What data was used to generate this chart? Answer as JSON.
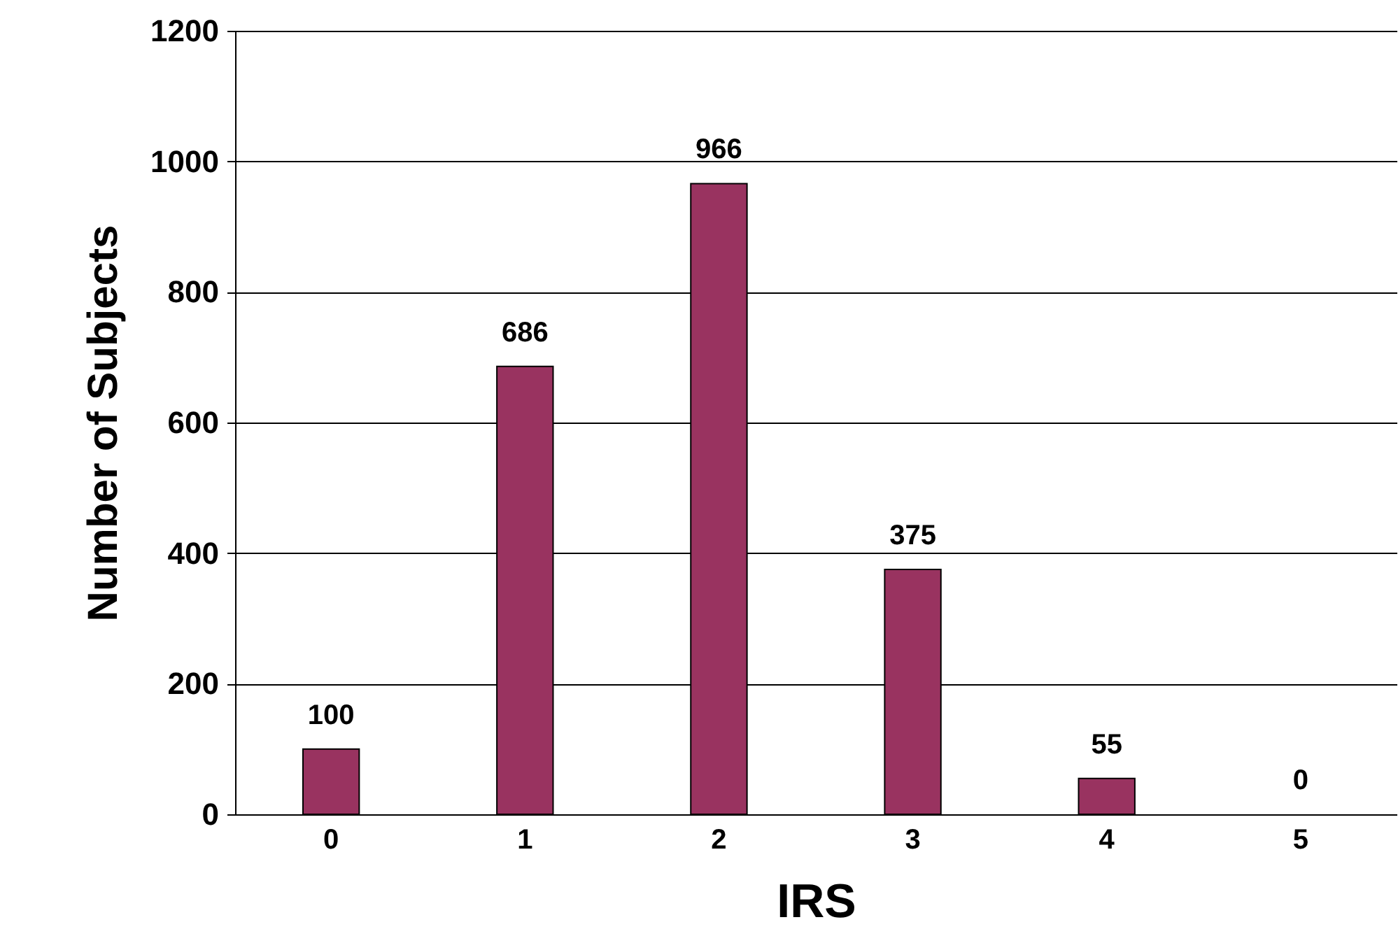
{
  "chart_data": {
    "type": "bar",
    "xlabel": "IRS",
    "ylabel": "Number of Subjects",
    "categories": [
      "0",
      "1",
      "2",
      "3",
      "4",
      "5"
    ],
    "values": [
      100,
      686,
      966,
      375,
      55,
      0
    ],
    "color": "#993360",
    "ylim": [
      0,
      1200
    ],
    "yticks": [
      0,
      200,
      400,
      600,
      800,
      1000,
      1200
    ],
    "grid": "y",
    "data_labels": true
  }
}
